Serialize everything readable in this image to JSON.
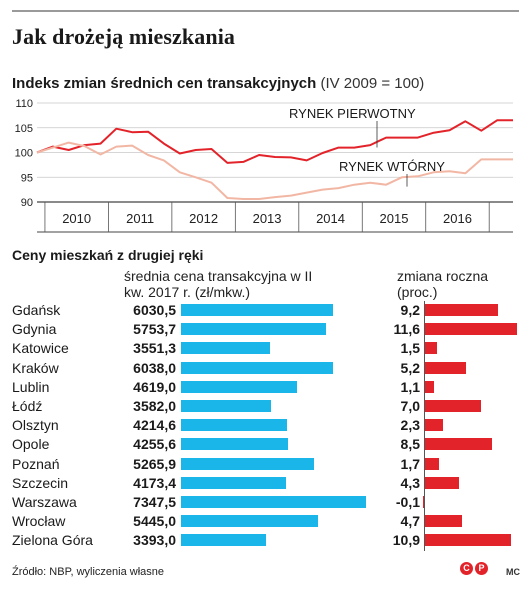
{
  "title": "Jak drożeją mieszkania",
  "chart_title": "Indeks zmian średnich cen transakcyjnych",
  "chart_subtitle": "(IV 2009 = 100)",
  "section_title": "Ceny mieszkań z drugiej ręki",
  "columns": {
    "price": "średnia cena transakcyjna w II kw. 2017 r. (zł/mkw.)",
    "change": "zmiana roczna (proc.)"
  },
  "colors": {
    "primary": "#e3232a",
    "secondary": "#f2b7a4",
    "price_bar": "#1ab6ea",
    "change_bar": "#e3232a"
  },
  "chart_data": [
    {
      "type": "line",
      "title": "Indeks zmian średnich cen transakcyjnych",
      "subtitle": "(IV 2009 = 100)",
      "ylim": [
        90,
        110
      ],
      "yticks": [
        90,
        95,
        100,
        105,
        110
      ],
      "xlim": [
        "IV 2009",
        "II 2017"
      ],
      "x_tick_labels": [
        "2010",
        "2011",
        "2012",
        "2013",
        "2014",
        "2015",
        "2016"
      ],
      "x": [
        "IV 2009",
        "I 2010",
        "II 2010",
        "III 2010",
        "IV 2010",
        "I 2011",
        "II 2011",
        "III 2011",
        "IV 2011",
        "I 2012",
        "II 2012",
        "III 2012",
        "IV 2012",
        "I 2013",
        "II 2013",
        "III 2013",
        "IV 2013",
        "I 2014",
        "II 2014",
        "III 2014",
        "IV 2014",
        "I 2015",
        "II 2015",
        "III 2015",
        "IV 2015",
        "I 2016",
        "II 2016",
        "III 2016",
        "IV 2016",
        "I 2017",
        "II 2017"
      ],
      "series": [
        {
          "name": "RYNEK PIERWOTNY",
          "values": [
            100,
            101.2,
            100.5,
            101.5,
            101.8,
            104.8,
            104.1,
            104.2,
            101.8,
            99.8,
            100.5,
            100.7,
            97.9,
            98.1,
            99.5,
            99.1,
            99.0,
            98.4,
            99.9,
            101.0,
            101.0,
            101.5,
            103.0,
            103.0,
            103.0,
            104.0,
            104.5,
            106.3,
            104.4,
            106.5,
            106.5
          ]
        },
        {
          "name": "RYNEK WTÓRNY",
          "values": [
            100,
            101.0,
            102.0,
            101.3,
            99.6,
            101.2,
            101.4,
            99.5,
            98.4,
            96.0,
            95.0,
            93.9,
            90.8,
            90.6,
            90.6,
            91.0,
            91.3,
            91.9,
            92.5,
            92.8,
            93.5,
            93.9,
            93.5,
            95.0,
            95.2,
            96.0,
            96.2,
            95.8,
            98.6,
            98.6,
            98.6
          ]
        }
      ],
      "grid": true
    },
    {
      "type": "table",
      "title": "Ceny mieszkań z drugiej ręki",
      "rows": [
        {
          "city": "Gdańsk",
          "price": "6030,5",
          "price_value": 6030.5,
          "change": "9,2",
          "change_value": 9.2
        },
        {
          "city": "Gdynia",
          "price": "5753,7",
          "price_value": 5753.7,
          "change": "11,6",
          "change_value": 11.6
        },
        {
          "city": "Katowice",
          "price": "3551,3",
          "price_value": 3551.3,
          "change": "1,5",
          "change_value": 1.5
        },
        {
          "city": "Kraków",
          "price": "6038,0",
          "price_value": 6038.0,
          "change": "5,2",
          "change_value": 5.2
        },
        {
          "city": "Lublin",
          "price": "4619,0",
          "price_value": 4619.0,
          "change": "1,1",
          "change_value": 1.1
        },
        {
          "city": "Łódź",
          "price": "3582,0",
          "price_value": 3582.0,
          "change": "7,0",
          "change_value": 7.0
        },
        {
          "city": "Olsztyn",
          "price": "4214,6",
          "price_value": 4214.6,
          "change": "2,3",
          "change_value": 2.3
        },
        {
          "city": "Opole",
          "price": "4255,6",
          "price_value": 4255.6,
          "change": "8,5",
          "change_value": 8.5
        },
        {
          "city": "Poznań",
          "price": "5265,9",
          "price_value": 5265.9,
          "change": "1,7",
          "change_value": 1.7
        },
        {
          "city": "Szczecin",
          "price": "4173,4",
          "price_value": 4173.4,
          "change": "4,3",
          "change_value": 4.3
        },
        {
          "city": "Warszawa",
          "price": "7347,5",
          "price_value": 7347.5,
          "change": "-0,1",
          "change_value": -0.1
        },
        {
          "city": "Wrocław",
          "price": "5445,0",
          "price_value": 5445.0,
          "change": "4,7",
          "change_value": 4.7
        },
        {
          "city": "Zielona Góra",
          "price": "3393,0",
          "price_value": 3393.0,
          "change": "10,9",
          "change_value": 10.9
        }
      ]
    }
  ],
  "footer": {
    "source": "Źródło: NBP, wyliczenia własne",
    "author": "MC",
    "copyright_icon": "copyright-icon",
    "p_icon": "p-circle-icon"
  }
}
